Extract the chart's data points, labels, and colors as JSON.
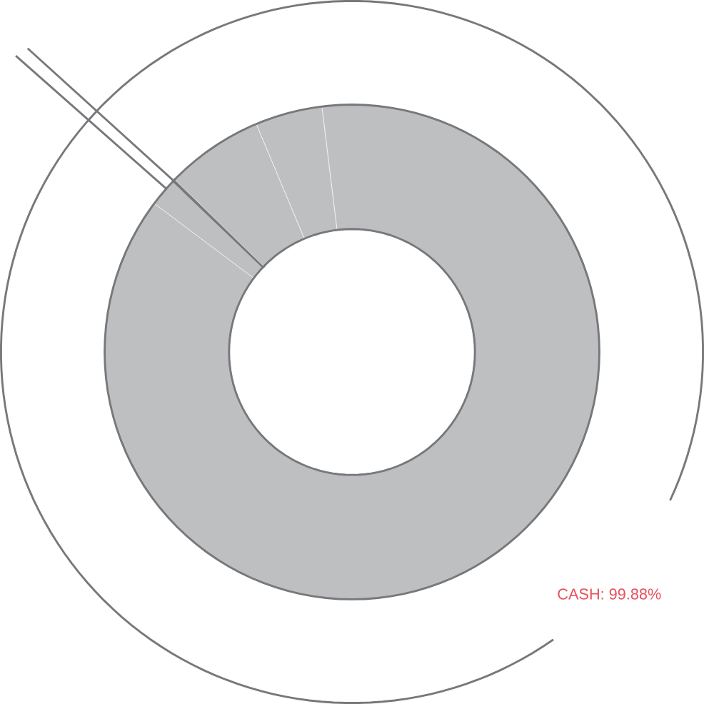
{
  "chart_data": {
    "type": "donut",
    "categories": [
      null,
      null,
      null,
      null,
      null
    ],
    "values": [
      87.2,
      1.9,
      0.12,
      6.4,
      4.38
    ],
    "colors": [
      "#bebfc1",
      "#bebfc1",
      "#77787b",
      "#bebfc1",
      "#bebfc1"
    ],
    "annotations": [
      "CASH: 99.88%"
    ]
  }
}
